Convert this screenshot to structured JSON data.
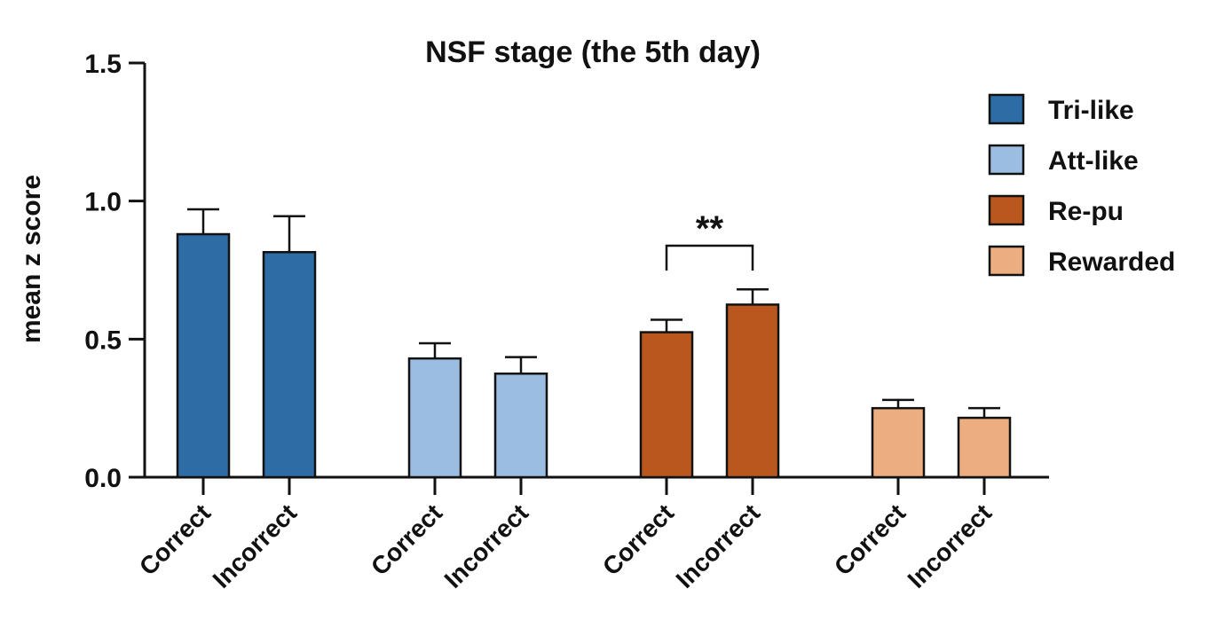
{
  "chart_data": {
    "type": "bar",
    "title": "NSF stage (the 5th day)",
    "xlabel": "",
    "ylabel": "mean z score",
    "ylim": [
      0,
      1.5
    ],
    "yticks": [
      "0.0",
      "0.5",
      "1.0",
      "1.5"
    ],
    "categories": [
      "Correct",
      "Incorrect"
    ],
    "series": [
      {
        "name": "Tri-like",
        "color": "#2e6ca6",
        "values": [
          0.88,
          0.815
        ],
        "errors": [
          0.09,
          0.13
        ]
      },
      {
        "name": "Att-like",
        "color": "#9bbde2",
        "values": [
          0.43,
          0.375
        ],
        "errors": [
          0.055,
          0.06
        ]
      },
      {
        "name": "Re-pu",
        "color": "#ba571f",
        "values": [
          0.525,
          0.625
        ],
        "errors": [
          0.045,
          0.055
        ]
      },
      {
        "name": "Rewarded",
        "color": "#ecad80",
        "values": [
          0.25,
          0.215
        ],
        "errors": [
          0.03,
          0.035
        ]
      }
    ],
    "significance": {
      "series": "Re-pu",
      "label": "**"
    },
    "legend_position": "right",
    "grid": false
  }
}
